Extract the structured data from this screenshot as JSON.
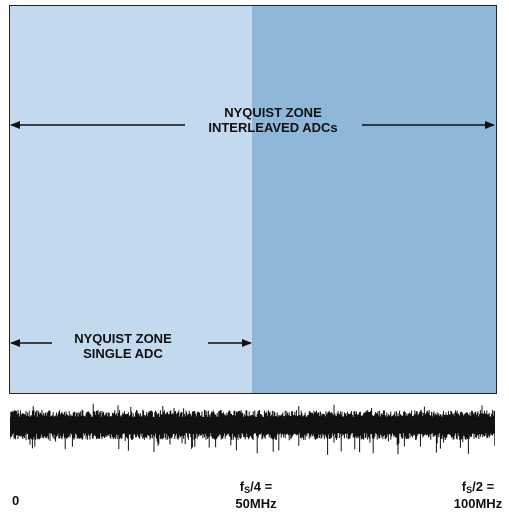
{
  "colors": {
    "zone_single": "#c3d9ee",
    "zone_interleaved": "#8fb7da",
    "noise": "#111111",
    "arrow": "#111111"
  },
  "interleaved_zone": {
    "line1": "NYQUIST ZONE",
    "line2": "INTERLEAVED ADCs"
  },
  "single_zone": {
    "line1": "NYQUIST ZONE",
    "line2": "SINGLE ADC"
  },
  "axis": {
    "zero": "0",
    "fs4_symbol": "f",
    "fs4_sub": "S",
    "fs4_rest": "/4 =",
    "fs4_value": "50MHz",
    "fs2_symbol": "f",
    "fs2_sub": "S",
    "fs2_rest": "/2 =",
    "fs2_value": "100MHz"
  }
}
